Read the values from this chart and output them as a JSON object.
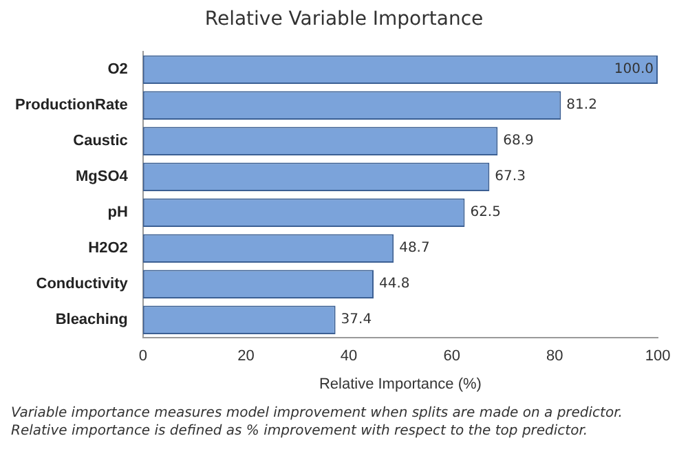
{
  "chart_data": {
    "type": "bar",
    "orientation": "horizontal",
    "title": "Relative Variable Importance",
    "xlabel": "Relative Importance (%)",
    "categories": [
      "O2",
      "ProductionRate",
      "Caustic",
      "MgSO4",
      "pH",
      "H2O2",
      "Conductivity",
      "Bleaching"
    ],
    "values": [
      100,
      81.2,
      68.9,
      67.3,
      62.5,
      48.7,
      44.8,
      37.4
    ],
    "value_labels": [
      "100.0",
      "81.2",
      "68.9",
      "67.3",
      "62.5",
      "48.7",
      "44.8",
      "37.4"
    ],
    "color": "#7ba3da",
    "xlim": [
      0,
      100
    ],
    "xticks": [
      0,
      20,
      40,
      60,
      80,
      100
    ],
    "grid": false,
    "legend": false,
    "annotations": [
      "Variable importance measures model improvement when splits are made on a predictor. Relative importance is defined as % improvement with respect to the top predictor."
    ]
  }
}
